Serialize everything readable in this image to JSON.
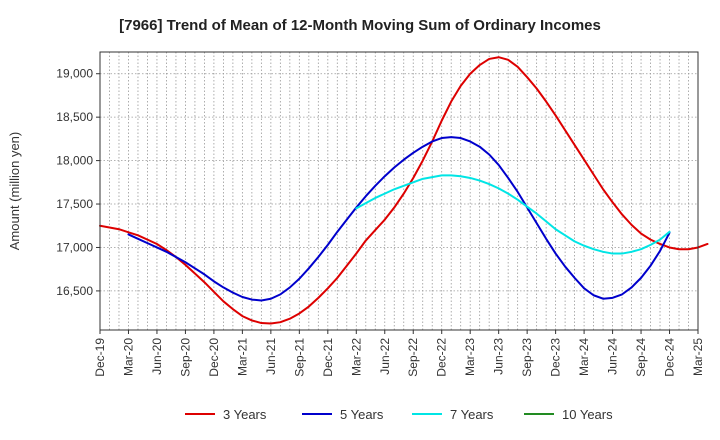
{
  "chart_data": {
    "type": "line",
    "title": "[7966]  Trend of Mean of 12-Month Moving Sum of Ordinary Incomes",
    "xlabel": "",
    "ylabel": "Amount (million yen)",
    "ylim": [
      16050,
      19250
    ],
    "yticks": [
      16500,
      17000,
      17500,
      18000,
      18500,
      19000
    ],
    "ytick_labels": [
      "16,500",
      "17,000",
      "17,500",
      "18,000",
      "18,500",
      "19,000"
    ],
    "x_start": "Dec-19",
    "x_end": "Mar-25",
    "xtick_labels": [
      "Dec-19",
      "Mar-20",
      "Jun-20",
      "Sep-20",
      "Dec-20",
      "Mar-21",
      "Jun-21",
      "Sep-21",
      "Dec-21",
      "Mar-22",
      "Jun-22",
      "Sep-22",
      "Dec-22",
      "Mar-23",
      "Jun-23",
      "Sep-23",
      "Dec-23",
      "Mar-24",
      "Jun-24",
      "Sep-24",
      "Dec-24",
      "Mar-25"
    ],
    "grid": true,
    "legend_position": "bottom",
    "series": [
      {
        "name": "3 Years",
        "color": "#dd0000",
        "start": "Dec-19",
        "step_months": 1,
        "values": [
          17250,
          17230,
          17210,
          17175,
          17140,
          17090,
          17040,
          16970,
          16890,
          16800,
          16700,
          16600,
          16490,
          16380,
          16290,
          16210,
          16160,
          16130,
          16125,
          16140,
          16180,
          16240,
          16320,
          16420,
          16530,
          16650,
          16790,
          16930,
          17080,
          17200,
          17320,
          17460,
          17620,
          17800,
          18000,
          18220,
          18460,
          18680,
          18860,
          19000,
          19100,
          19170,
          19190,
          19160,
          19080,
          18960,
          18830,
          18680,
          18520,
          18350,
          18180,
          18010,
          17840,
          17670,
          17520,
          17380,
          17260,
          17160,
          17090,
          17040,
          17000,
          16980,
          16980,
          17000,
          17040
        ]
      },
      {
        "name": "5 Years",
        "color": "#0000cc",
        "start": "Mar-20",
        "step_months": 1,
        "values": [
          17150,
          17100,
          17050,
          17000,
          16950,
          16890,
          16830,
          16760,
          16690,
          16610,
          16540,
          16480,
          16430,
          16400,
          16390,
          16410,
          16460,
          16540,
          16640,
          16760,
          16890,
          17030,
          17180,
          17320,
          17460,
          17590,
          17710,
          17820,
          17920,
          18010,
          18090,
          18160,
          18220,
          18260,
          18270,
          18260,
          18220,
          18160,
          18070,
          17950,
          17800,
          17640,
          17460,
          17280,
          17100,
          16930,
          16780,
          16650,
          16530,
          16450,
          16410,
          16420,
          16460,
          16540,
          16650,
          16790,
          16960,
          17170
        ]
      },
      {
        "name": "7 Years",
        "color": "#00e5e5",
        "start": "Mar-22",
        "step_months": 1,
        "values": [
          17450,
          17510,
          17570,
          17620,
          17670,
          17710,
          17750,
          17790,
          17810,
          17830,
          17830,
          17820,
          17800,
          17770,
          17730,
          17680,
          17620,
          17550,
          17470,
          17390,
          17300,
          17210,
          17140,
          17070,
          17020,
          16980,
          16950,
          16930,
          16930,
          16950,
          16980,
          17030,
          17090,
          17180
        ]
      },
      {
        "name": "10 Years",
        "color": "#228b22",
        "start": "Mar-22",
        "step_months": 1,
        "values": []
      }
    ]
  }
}
